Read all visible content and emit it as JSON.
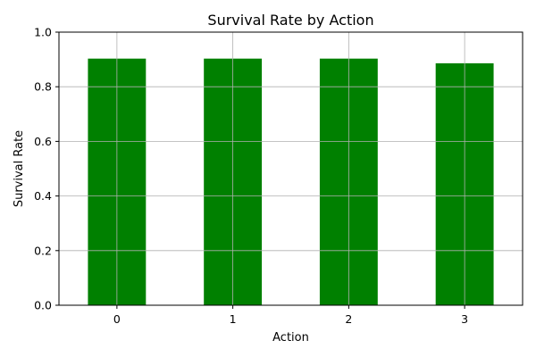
{
  "chart_data": {
    "type": "bar",
    "title": "Survival Rate by Action",
    "xlabel": "Action",
    "ylabel": "Survival Rate",
    "categories": [
      "0",
      "1",
      "2",
      "3"
    ],
    "values": [
      0.903,
      0.903,
      0.903,
      0.886
    ],
    "ylim": [
      0,
      1.0
    ],
    "yticks": [
      0.0,
      0.2,
      0.4,
      0.6,
      0.8,
      1.0
    ],
    "ytick_labels": [
      "0.0",
      "0.2",
      "0.4",
      "0.6",
      "0.8",
      "1.0"
    ],
    "grid": true,
    "bar_color": "#008000"
  }
}
